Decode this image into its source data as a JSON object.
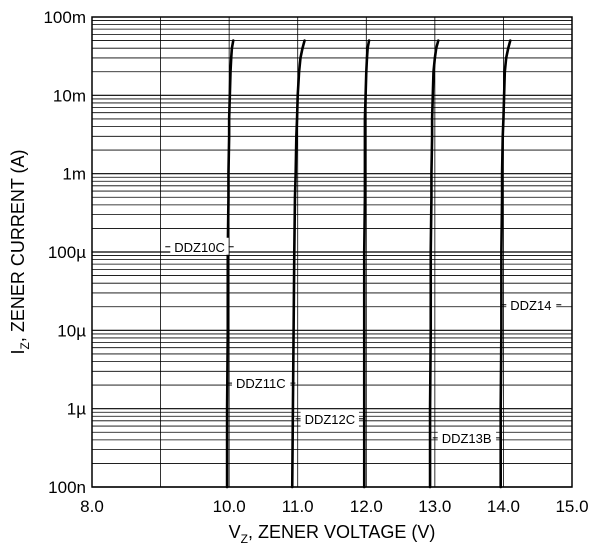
{
  "chart_data": {
    "type": "line",
    "title": "",
    "xlabel": "V_Z, ZENER VOLTAGE (V)",
    "ylabel": "I_Z, ZENER CURRENT (A)",
    "xlim": [
      8.0,
      15.0
    ],
    "ylim": [
      1e-07,
      0.1
    ],
    "yscale": "log",
    "grid": true,
    "x_tick_labels": [
      "8.0",
      "10.0",
      "11.0",
      "12.0",
      "13.0",
      "14.0",
      "15.0"
    ],
    "x_tick_values": [
      8.0,
      10.0,
      11.0,
      12.0,
      13.0,
      14.0,
      15.0
    ],
    "y_tick_labels": [
      "100n",
      "1µ",
      "10µ",
      "100µ",
      "1m",
      "10m",
      "100m"
    ],
    "y_tick_values": [
      1e-07,
      1e-06,
      1e-05,
      0.0001,
      0.001,
      0.01,
      0.1
    ],
    "series": [
      {
        "name": "DDZ10C",
        "x": [
          9.97,
          9.97,
          9.98,
          9.98,
          9.99,
          9.99,
          10.0,
          10.0,
          10.01,
          10.02,
          10.03,
          10.04,
          10.06
        ],
        "y": [
          1e-07,
          1e-06,
          1e-05,
          0.0001,
          0.0005,
          0.001,
          0.003,
          0.005,
          0.01,
          0.02,
          0.03,
          0.04,
          0.05
        ],
        "label_at": {
          "x": 9.2,
          "y": 0.00011
        }
      },
      {
        "name": "DDZ11C",
        "x": [
          10.92,
          10.93,
          10.94,
          10.95,
          10.96,
          10.97,
          10.98,
          10.99,
          11.0,
          11.02,
          11.04,
          11.07,
          11.1
        ],
        "y": [
          1e-07,
          1e-06,
          1e-05,
          0.0001,
          0.0005,
          0.001,
          0.003,
          0.005,
          0.01,
          0.02,
          0.03,
          0.04,
          0.05
        ],
        "label_at": {
          "x": 10.1,
          "y": 2e-06
        }
      },
      {
        "name": "DDZ12C",
        "x": [
          11.97,
          11.97,
          11.97,
          11.97,
          11.98,
          11.98,
          11.98,
          11.98,
          11.99,
          12.0,
          12.01,
          12.02,
          12.04
        ],
        "y": [
          1e-07,
          1e-06,
          1e-05,
          0.0001,
          0.0005,
          0.001,
          0.003,
          0.005,
          0.01,
          0.02,
          0.03,
          0.04,
          0.05
        ],
        "label_at": {
          "x": 11.1,
          "y": 7e-07
        }
      },
      {
        "name": "DDZ13B",
        "x": [
          12.93,
          12.93,
          12.94,
          12.94,
          12.95,
          12.95,
          12.96,
          12.96,
          12.97,
          12.98,
          13.0,
          13.02,
          13.05
        ],
        "y": [
          1e-07,
          1e-06,
          1e-05,
          0.0001,
          0.0005,
          0.001,
          0.003,
          0.005,
          0.01,
          0.02,
          0.03,
          0.04,
          0.05
        ],
        "label_at": {
          "x": 13.1,
          "y": 4e-07
        }
      },
      {
        "name": "DDZ14",
        "x": [
          13.96,
          13.96,
          13.97,
          13.97,
          13.98,
          13.98,
          13.99,
          14.0,
          14.01,
          14.02,
          14.04,
          14.07,
          14.1
        ],
        "y": [
          1e-07,
          1e-06,
          1e-05,
          0.0001,
          0.0005,
          0.001,
          0.003,
          0.005,
          0.01,
          0.02,
          0.03,
          0.04,
          0.05
        ],
        "label_at": {
          "x": 14.1,
          "y": 2e-05
        }
      }
    ]
  }
}
